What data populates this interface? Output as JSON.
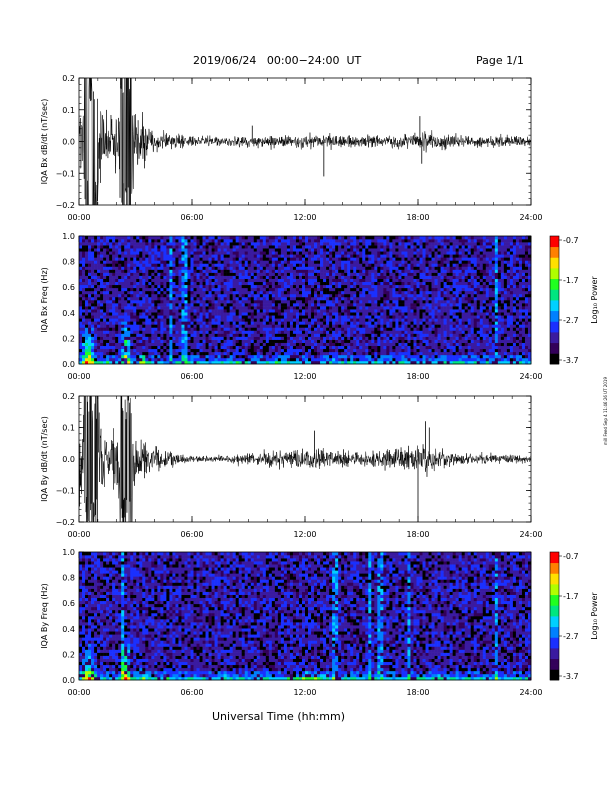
{
  "header": {
    "title": "2019/06/24   00:00−24:00  UT",
    "page": "Page 1/1"
  },
  "footer": {
    "xlabel": "Universal Time (hh:mm)"
  },
  "side_note": "mill Feed Sep 4 11:46:26 UT 2019",
  "colors": {
    "trace": "#000000",
    "axis": "#000000"
  },
  "colorbar": {
    "label": "Log₁₀ Power",
    "ticks": [
      "-0.7",
      "-1.7",
      "-2.7",
      "-3.7"
    ],
    "range": [
      -3.7,
      -0.7
    ],
    "colormap": [
      "#000000",
      "#33005a",
      "#3a1aa0",
      "#1a30ff",
      "#0080ff",
      "#00d0ff",
      "#00e680",
      "#20ff20",
      "#b0ff00",
      "#ffe000",
      "#ff8000",
      "#ff0000"
    ]
  },
  "chart_data": [
    {
      "type": "line",
      "ylabel": "IQA Bx dB/dt (nT/sec)",
      "xlim": [
        0,
        24
      ],
      "ylim": [
        -0.2,
        0.2
      ],
      "x_ticks": [
        "00:00",
        "06:00",
        "12:00",
        "18:00",
        "24:00"
      ],
      "y_ticks": [
        "−0.2",
        "−0.1",
        "0.0",
        "0.1",
        "0.2"
      ],
      "envelope": {
        "x": [
          0,
          0.3,
          0.6,
          1.0,
          1.3,
          1.6,
          2.0,
          2.2,
          2.5,
          2.8,
          3.0,
          3.3,
          3.6,
          4.0,
          4.5,
          5.0,
          5.5,
          6.0,
          7,
          8,
          9,
          10,
          11,
          12,
          13,
          14,
          15,
          16,
          17,
          18,
          18.5,
          19,
          20,
          21,
          22,
          23,
          24
        ],
        "amplitude": [
          0.13,
          0.2,
          0.2,
          0.2,
          0.12,
          0.1,
          0.12,
          0.2,
          0.2,
          0.2,
          0.12,
          0.09,
          0.07,
          0.05,
          0.035,
          0.03,
          0.025,
          0.02,
          0.018,
          0.02,
          0.02,
          0.022,
          0.025,
          0.025,
          0.028,
          0.025,
          0.025,
          0.025,
          0.025,
          0.03,
          0.04,
          0.03,
          0.025,
          0.022,
          0.022,
          0.02,
          0.02
        ]
      },
      "spikes": [
        {
          "x": 13.0,
          "y": -0.11
        },
        {
          "x": 18.1,
          "y": 0.08
        },
        {
          "x": 18.2,
          "y": -0.07
        },
        {
          "x": 9.2,
          "y": 0.05
        }
      ]
    },
    {
      "type": "heatmap",
      "ylabel": "IQA Bx Freq (Hz)",
      "xlim": [
        0,
        24
      ],
      "ylim": [
        0,
        1.0
      ],
      "x_ticks": [
        "00:00",
        "06:00",
        "12:00",
        "18:00",
        "24:00"
      ],
      "y_ticks": [
        "0.0",
        "0.2",
        "0.4",
        "0.6",
        "0.8",
        "1.0"
      ],
      "bursts": [
        {
          "x": 0.5,
          "width": 1.0,
          "height": 0.35,
          "strength": 1.0
        },
        {
          "x": 2.5,
          "width": 0.6,
          "height": 0.45,
          "strength": 1.0
        },
        {
          "x": 3.4,
          "width": 0.4,
          "height": 0.15,
          "strength": 0.7
        }
      ],
      "vertical_lines": [
        4.9,
        5.6,
        22.2
      ]
    },
    {
      "type": "line",
      "ylabel": "IQA By dB/dt (nT/sec)",
      "xlim": [
        0,
        24
      ],
      "ylim": [
        -0.2,
        0.2
      ],
      "x_ticks": [
        "00:00",
        "06:00",
        "12:00",
        "18:00",
        "24:00"
      ],
      "y_ticks": [
        "−0.2",
        "−0.1",
        "0.0",
        "0.1",
        "0.2"
      ],
      "envelope": {
        "x": [
          0,
          0.3,
          0.6,
          1.0,
          1.3,
          1.6,
          2.0,
          2.2,
          2.5,
          2.8,
          3.0,
          3.3,
          3.6,
          4.0,
          4.5,
          5.0,
          5.5,
          6.0,
          7,
          8,
          9,
          10,
          11,
          12,
          13,
          14,
          15,
          16,
          17,
          18,
          18.5,
          19,
          20,
          21,
          22,
          23,
          24
        ],
        "amplitude": [
          0.13,
          0.2,
          0.2,
          0.2,
          0.12,
          0.1,
          0.12,
          0.2,
          0.2,
          0.2,
          0.12,
          0.09,
          0.07,
          0.05,
          0.035,
          0.03,
          0.02,
          0.012,
          0.012,
          0.02,
          0.025,
          0.03,
          0.04,
          0.045,
          0.035,
          0.03,
          0.03,
          0.035,
          0.04,
          0.05,
          0.06,
          0.04,
          0.025,
          0.02,
          0.02,
          0.018,
          0.016
        ]
      },
      "spikes": [
        {
          "x": 18.0,
          "y": -0.19
        },
        {
          "x": 18.4,
          "y": 0.12
        },
        {
          "x": 18.6,
          "y": 0.1
        },
        {
          "x": 12.5,
          "y": 0.09
        }
      ]
    },
    {
      "type": "heatmap",
      "ylabel": "IQA By Freq (Hz)",
      "xlim": [
        0,
        24
      ],
      "ylim": [
        0,
        1.0
      ],
      "x_ticks": [
        "00:00",
        "06:00",
        "12:00",
        "18:00",
        "24:00"
      ],
      "y_ticks": [
        "0.0",
        "0.2",
        "0.4",
        "0.6",
        "0.8",
        "1.0"
      ],
      "bursts": [
        {
          "x": 0.5,
          "width": 1.0,
          "height": 0.35,
          "strength": 1.0
        },
        {
          "x": 2.5,
          "width": 0.6,
          "height": 0.45,
          "strength": 1.0
        },
        {
          "x": 3.4,
          "width": 0.4,
          "height": 0.15,
          "strength": 0.7
        },
        {
          "x": 12.5,
          "width": 3.0,
          "height": 0.07,
          "strength": 0.4
        }
      ],
      "vertical_lines": [
        2.3,
        13.6,
        15.5,
        16.0,
        17.5,
        22.2
      ]
    }
  ]
}
